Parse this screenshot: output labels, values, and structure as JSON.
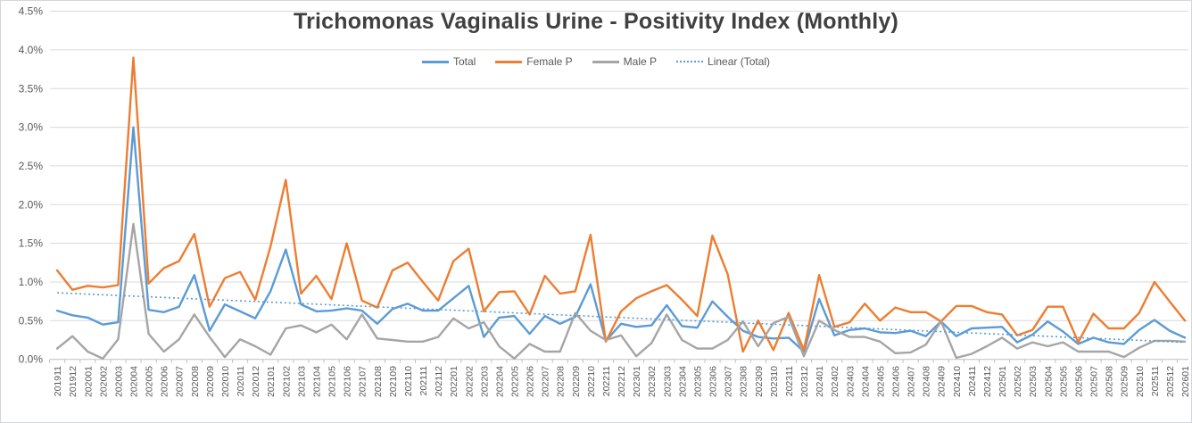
{
  "chart_data": {
    "type": "line",
    "title": "Trichomonas Vaginalis Urine - Positivity Index (Monthly)",
    "legend_position": "top",
    "grid": true,
    "y_axis": {
      "min": 0.0,
      "max": 4.5,
      "step": 0.5,
      "unit": "%"
    },
    "y_tick_labels": [
      "0.0%",
      "0.5%",
      "1.0%",
      "1.5%",
      "2.0%",
      "2.5%",
      "3.0%",
      "3.5%",
      "4.0%",
      "4.5%"
    ],
    "categories": [
      "201911",
      "201912",
      "202001",
      "202002",
      "202003",
      "202004",
      "202005",
      "202006",
      "202007",
      "202008",
      "202009",
      "202010",
      "202011",
      "202012",
      "202101",
      "202102",
      "202103",
      "202104",
      "202105",
      "202106",
      "202107",
      "202108",
      "202109",
      "202110",
      "202111",
      "202112",
      "202201",
      "202202",
      "202203",
      "202204",
      "202205",
      "202206",
      "202207",
      "202208",
      "202209",
      "202210",
      "202211",
      "202212",
      "202301",
      "202302",
      "202303",
      "202304",
      "202305",
      "202306",
      "202307",
      "202308",
      "202309",
      "202310",
      "202311",
      "202312",
      "202401",
      "202402",
      "202403",
      "202404",
      "202405",
      "202406",
      "202407",
      "202408",
      "202409",
      "202410",
      "202411",
      "202412",
      "202501",
      "202502",
      "202503",
      "202504",
      "202505",
      "202506",
      "202507",
      "202508",
      "202509",
      "202510",
      "202511",
      "202512",
      "202601"
    ],
    "series": [
      {
        "name": "Total",
        "color": "#5B9BD5",
        "line_style": "solid",
        "values": [
          0.63,
          0.57,
          0.54,
          0.45,
          0.48,
          3.0,
          0.64,
          0.61,
          0.68,
          1.09,
          0.37,
          0.71,
          0.62,
          0.53,
          0.88,
          1.42,
          0.71,
          0.62,
          0.63,
          0.66,
          0.63,
          0.46,
          0.65,
          0.72,
          0.63,
          0.63,
          0.79,
          0.95,
          0.29,
          0.54,
          0.56,
          0.33,
          0.56,
          0.46,
          0.55,
          0.97,
          0.24,
          0.46,
          0.42,
          0.44,
          0.7,
          0.43,
          0.41,
          0.75,
          0.55,
          0.37,
          0.29,
          0.27,
          0.28,
          0.1,
          0.78,
          0.31,
          0.38,
          0.4,
          0.35,
          0.34,
          0.37,
          0.3,
          0.49,
          0.3,
          0.4,
          0.41,
          0.42,
          0.22,
          0.32,
          0.49,
          0.36,
          0.2,
          0.28,
          0.22,
          0.2,
          0.38,
          0.51,
          0.37,
          0.28
        ]
      },
      {
        "name": "Female P",
        "color": "#ED7D31",
        "line_style": "solid",
        "values": [
          1.15,
          0.9,
          0.95,
          0.93,
          0.96,
          3.9,
          0.98,
          1.18,
          1.27,
          1.62,
          0.68,
          1.05,
          1.13,
          0.77,
          1.46,
          2.32,
          0.85,
          1.08,
          0.78,
          1.5,
          0.76,
          0.67,
          1.15,
          1.25,
          1.0,
          0.76,
          1.27,
          1.43,
          0.62,
          0.87,
          0.88,
          0.58,
          1.08,
          0.85,
          0.88,
          1.61,
          0.23,
          0.62,
          0.79,
          0.88,
          0.96,
          0.77,
          0.56,
          1.6,
          1.1,
          0.1,
          0.5,
          0.12,
          0.6,
          0.12,
          1.09,
          0.42,
          0.48,
          0.72,
          0.5,
          0.67,
          0.61,
          0.61,
          0.49,
          0.69,
          0.69,
          0.61,
          0.58,
          0.31,
          0.38,
          0.68,
          0.68,
          0.22,
          0.59,
          0.4,
          0.4,
          0.6,
          1.0,
          0.75,
          0.5
        ]
      },
      {
        "name": "Male P",
        "color": "#A5A5A5",
        "line_style": "solid",
        "values": [
          0.14,
          0.3,
          0.1,
          0.01,
          0.26,
          1.75,
          0.33,
          0.1,
          0.26,
          0.58,
          0.29,
          0.03,
          0.26,
          0.17,
          0.06,
          0.4,
          0.44,
          0.35,
          0.45,
          0.26,
          0.58,
          0.27,
          0.25,
          0.23,
          0.23,
          0.29,
          0.53,
          0.4,
          0.48,
          0.17,
          0.01,
          0.2,
          0.1,
          0.1,
          0.6,
          0.37,
          0.25,
          0.31,
          0.04,
          0.21,
          0.58,
          0.25,
          0.14,
          0.14,
          0.25,
          0.49,
          0.17,
          0.47,
          0.55,
          0.04,
          0.5,
          0.38,
          0.29,
          0.29,
          0.23,
          0.08,
          0.09,
          0.19,
          0.49,
          0.02,
          0.07,
          0.17,
          0.28,
          0.14,
          0.22,
          0.17,
          0.22,
          0.1,
          0.1,
          0.1,
          0.03,
          0.15,
          0.24,
          0.24,
          0.23
        ]
      },
      {
        "name": "Linear (Total)",
        "color": "#5B9BD5",
        "line_style": "dotted",
        "trend_start": 0.86,
        "trend_end": 0.22
      }
    ],
    "colors": {
      "gridline": "#D9D9D9",
      "axis_line": "#BFBFBF",
      "tick_label": "#595959",
      "title": "#404040"
    }
  }
}
